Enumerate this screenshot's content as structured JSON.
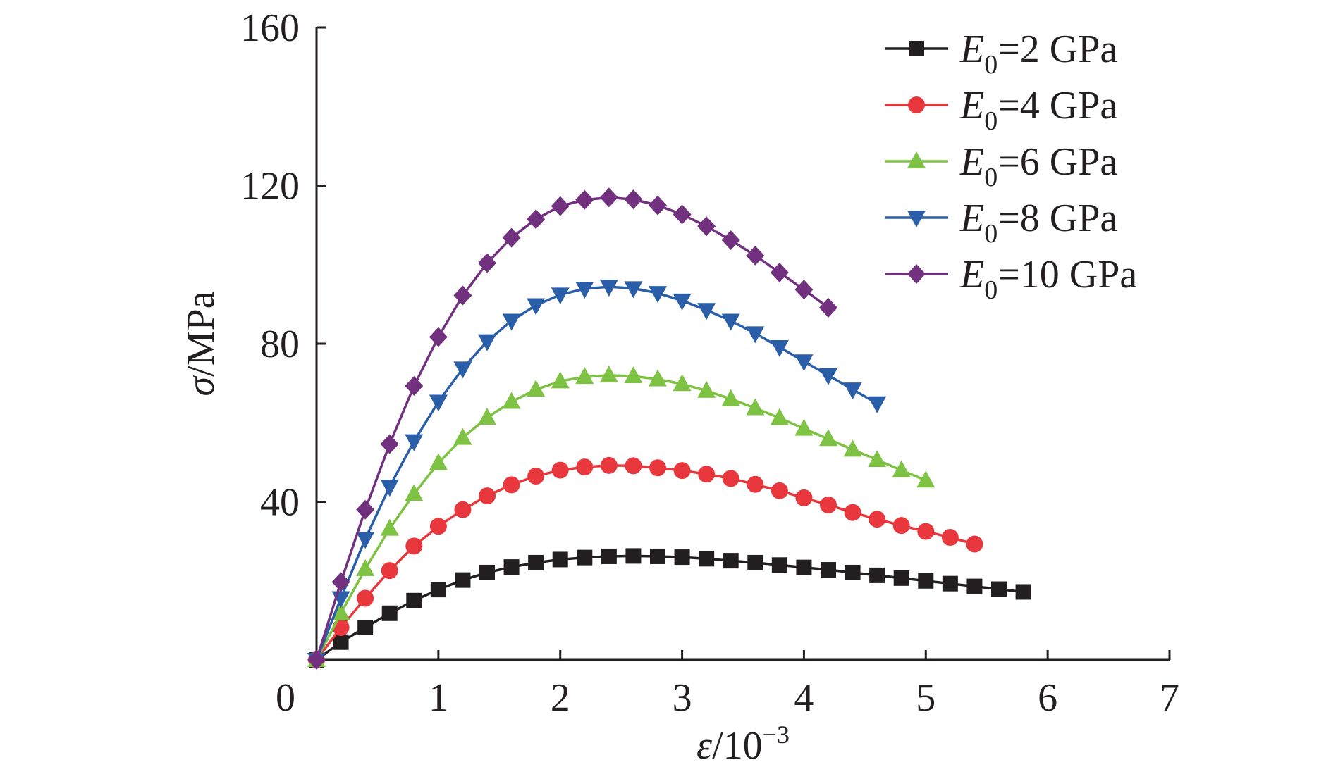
{
  "chart_data": {
    "type": "line",
    "title": "",
    "xlabel": {
      "var": "ε",
      "rest": "/10",
      "sup": "−3"
    },
    "ylabel": {
      "var": "σ",
      "rest": "/MPa"
    },
    "xlim": [
      0,
      7
    ],
    "ylim": [
      0,
      160
    ],
    "x_ticks": [
      0,
      1,
      2,
      3,
      4,
      5,
      6,
      7
    ],
    "y_ticks": [
      40,
      80,
      120,
      160
    ],
    "grid": false,
    "legend_position": "top-right",
    "series": [
      {
        "name": {
          "var": "E",
          "sub": "0",
          "rest": "=2 GPa"
        },
        "color": "#231f20",
        "marker": "square",
        "x": [
          0,
          0.2,
          0.4,
          0.6,
          0.8,
          1.0,
          1.2,
          1.4,
          1.6,
          1.8,
          2.0,
          2.2,
          2.4,
          2.6,
          2.8,
          3.0,
          3.2,
          3.4,
          3.6,
          3.8,
          4.0,
          4.2,
          4.4,
          4.6,
          4.8,
          5.0,
          5.2,
          5.4,
          5.6,
          5.8
        ],
        "y": [
          0,
          4.5,
          8.2,
          11.8,
          15.0,
          17.8,
          20.2,
          22.1,
          23.5,
          24.6,
          25.4,
          25.9,
          26.2,
          26.3,
          26.2,
          26.0,
          25.6,
          25.1,
          24.6,
          24.0,
          23.4,
          22.8,
          22.1,
          21.4,
          20.7,
          20.0,
          19.3,
          18.6,
          17.9,
          17.2
        ]
      },
      {
        "name": {
          "var": "E",
          "sub": "0",
          "rest": "=4 GPa"
        },
        "color": "#e8383d",
        "marker": "circle",
        "x": [
          0,
          0.2,
          0.4,
          0.6,
          0.8,
          1.0,
          1.2,
          1.4,
          1.6,
          1.8,
          2.0,
          2.2,
          2.4,
          2.6,
          2.8,
          3.0,
          3.2,
          3.4,
          3.6,
          3.8,
          4.0,
          4.2,
          4.4,
          4.6,
          4.8,
          5.0,
          5.2,
          5.4
        ],
        "y": [
          0,
          8.2,
          15.6,
          22.6,
          28.8,
          33.8,
          38.0,
          41.5,
          44.3,
          46.5,
          48.0,
          48.8,
          49.2,
          49.1,
          48.6,
          47.9,
          47.0,
          45.9,
          44.4,
          42.8,
          41.0,
          39.2,
          37.3,
          35.6,
          34.0,
          32.5,
          31.0,
          29.3
        ]
      },
      {
        "name": {
          "var": "E",
          "sub": "0",
          "rest": "=6 GPa"
        },
        "color": "#7dc242",
        "marker": "triangle-up",
        "x": [
          0,
          0.2,
          0.4,
          0.6,
          0.8,
          1.0,
          1.2,
          1.4,
          1.6,
          1.8,
          2.0,
          2.2,
          2.4,
          2.6,
          2.8,
          3.0,
          3.2,
          3.4,
          3.6,
          3.8,
          4.0,
          4.2,
          4.4,
          4.6,
          4.8,
          5.0
        ],
        "y": [
          0,
          11.8,
          23.0,
          33.2,
          42.0,
          49.8,
          56.2,
          61.3,
          65.3,
          68.4,
          70.5,
          71.6,
          72.0,
          71.8,
          71.0,
          69.8,
          68.1,
          66.0,
          63.7,
          61.2,
          58.5,
          55.9,
          53.2,
          50.6,
          48.0,
          45.4
        ]
      },
      {
        "name": {
          "var": "E",
          "sub": "0",
          "rest": "=8 GPa"
        },
        "color": "#2a5ea9",
        "marker": "triangle-down",
        "x": [
          0,
          0.2,
          0.4,
          0.6,
          0.8,
          1.0,
          1.2,
          1.4,
          1.6,
          1.8,
          2.0,
          2.2,
          2.4,
          2.6,
          2.8,
          3.0,
          3.2,
          3.4,
          3.6,
          3.8,
          4.0,
          4.2,
          4.4,
          4.6
        ],
        "y": [
          0,
          15.6,
          30.6,
          43.8,
          55.3,
          65.3,
          73.7,
          80.6,
          85.8,
          89.7,
          92.4,
          93.9,
          94.4,
          94.0,
          92.8,
          90.9,
          88.5,
          85.8,
          82.6,
          79.1,
          75.5,
          72.0,
          68.4,
          64.9
        ]
      },
      {
        "name": {
          "var": "E",
          "sub": "0",
          "rest": "=10 GPa"
        },
        "color": "#72317e",
        "marker": "diamond",
        "x": [
          0,
          0.2,
          0.4,
          0.6,
          0.8,
          1.0,
          1.2,
          1.4,
          1.6,
          1.8,
          2.0,
          2.2,
          2.4,
          2.6,
          2.8,
          3.0,
          3.2,
          3.4,
          3.6,
          3.8,
          4.0,
          4.2
        ],
        "y": [
          0,
          19.7,
          38.0,
          54.6,
          69.3,
          81.7,
          92.2,
          100.4,
          106.8,
          111.5,
          114.8,
          116.4,
          117.0,
          116.5,
          115.0,
          112.7,
          109.7,
          106.2,
          102.3,
          98.0,
          93.7,
          89.1
        ]
      }
    ]
  }
}
